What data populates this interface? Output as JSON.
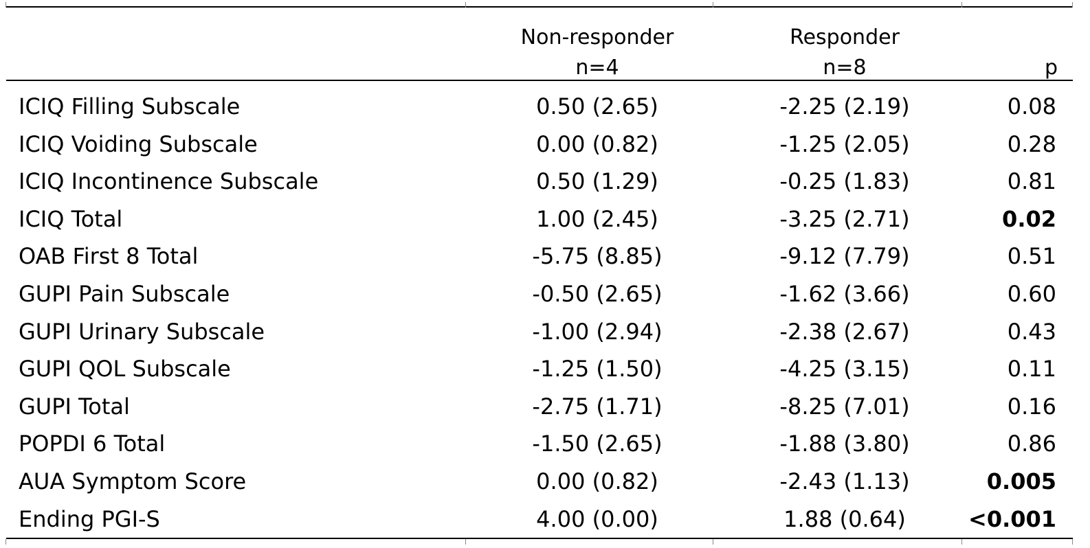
{
  "table": {
    "headers": {
      "non_responder": [
        "Non-responder",
        "n=4"
      ],
      "responder": [
        "Responder",
        "n=8"
      ],
      "p": "p"
    },
    "rows": [
      {
        "label": "ICIQ Filling Subscale",
        "non_responder": "0.50 (2.65)",
        "responder": "-2.25 (2.19)",
        "p": "0.08",
        "p_bold": false
      },
      {
        "label": "ICIQ Voiding Subscale",
        "non_responder": "0.00 (0.82)",
        "responder": "-1.25 (2.05)",
        "p": "0.28",
        "p_bold": false
      },
      {
        "label": "ICIQ Incontinence Subscale",
        "non_responder": "0.50 (1.29)",
        "responder": "-0.25 (1.83)",
        "p": "0.81",
        "p_bold": false
      },
      {
        "label": "ICIQ Total",
        "non_responder": "1.00 (2.45)",
        "responder": "-3.25 (2.71)",
        "p": "0.02",
        "p_bold": true
      },
      {
        "label": "OAB First 8 Total",
        "non_responder": "-5.75 (8.85)",
        "responder": "-9.12 (7.79)",
        "p": "0.51",
        "p_bold": false
      },
      {
        "label": "GUPI Pain Subscale",
        "non_responder": "-0.50 (2.65)",
        "responder": "-1.62 (3.66)",
        "p": "0.60",
        "p_bold": false
      },
      {
        "label": "GUPI Urinary Subscale",
        "non_responder": "-1.00 (2.94)",
        "responder": "-2.38 (2.67)",
        "p": "0.43",
        "p_bold": false
      },
      {
        "label": "GUPI QOL Subscale",
        "non_responder": "-1.25 (1.50)",
        "responder": "-4.25 (3.15)",
        "p": "0.11",
        "p_bold": false
      },
      {
        "label": "GUPI Total",
        "non_responder": "-2.75 (1.71)",
        "responder": "-8.25 (7.01)",
        "p": "0.16",
        "p_bold": false
      },
      {
        "label": "POPDI 6 Total",
        "non_responder": "-1.50 (2.65)",
        "responder": "-1.88 (3.80)",
        "p": "0.86",
        "p_bold": false
      },
      {
        "label": "AUA Symptom Score",
        "non_responder": "0.00 (0.82)",
        "responder": "-2.43 (1.13)",
        "p": "0.005",
        "p_bold": true
      },
      {
        "label": "Ending PGI-S",
        "non_responder": "4.00 (0.00)",
        "responder": "1.88 (0.64)",
        "p": "<0.001",
        "p_bold": true
      }
    ]
  }
}
